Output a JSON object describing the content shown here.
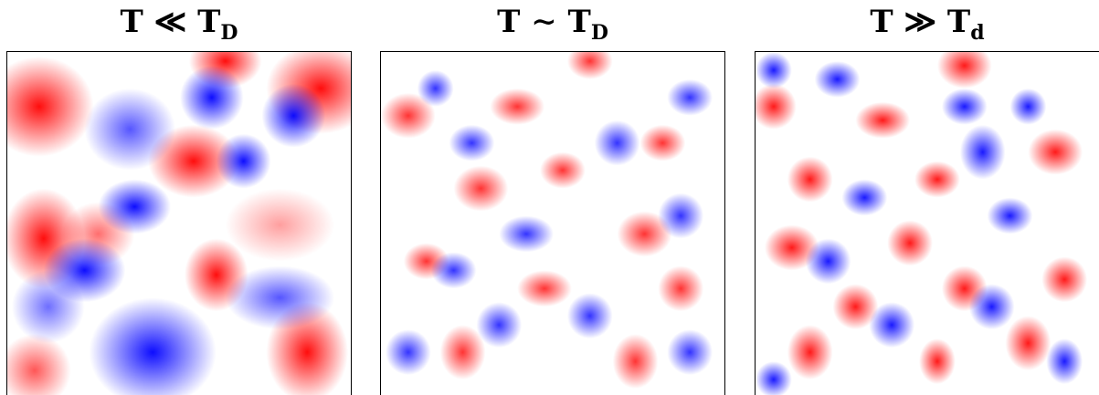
{
  "panels": [
    {
      "id": "low",
      "title_main": "T ≪ T",
      "title_sub": "D"
    },
    {
      "id": "mid",
      "title_main": "T ∼ T",
      "title_sub": "D"
    },
    {
      "id": "high",
      "title_main": "T ≫ T",
      "title_sub": "d"
    }
  ],
  "colors": {
    "positive": "#ff0000",
    "negative": "#0000ff",
    "background": "#ffffff"
  }
}
